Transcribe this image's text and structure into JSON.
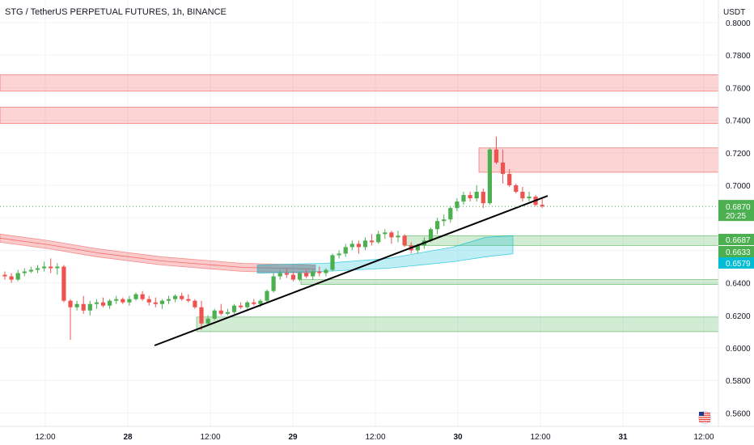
{
  "title": "STG / TetherUS PERPETUAL FUTURES, 1h, BINANCE",
  "currency": "USDT",
  "price_label": {
    "value": "0.6870",
    "countdown": "20:25",
    "color": "#4caf50"
  },
  "level_labels": [
    {
      "value": "0.6687",
      "color": "#4caf50",
      "fill": "green"
    },
    {
      "value": "0.6633",
      "color": "#4caf50",
      "fill": "green"
    },
    {
      "value": "0.6579",
      "color": "#00bcd4",
      "fill": "cyan"
    }
  ],
  "flag_icon": "us-flag-icon",
  "colors": {
    "up": "#4caf50",
    "down": "#ef5350",
    "supply": "#ef5350",
    "demand": "#4caf50",
    "trendline": "#000000",
    "grid": "#f0f3fa"
  },
  "chart_data": {
    "type": "candlestick",
    "title": "STG / TetherUS PERPETUAL FUTURES, 1h, BINANCE",
    "y_axis": {
      "unit": "USDT",
      "ylim": [
        0.555,
        0.804
      ],
      "ticks": [
        "0.8000",
        "0.7800",
        "0.7600",
        "0.7400",
        "0.7200",
        "0.7000",
        "0.6800",
        "0.6600",
        "0.6400",
        "0.6200",
        "0.6000",
        "0.5800",
        "0.5600"
      ]
    },
    "x_axis": {
      "ticks": [
        "12:00",
        "28",
        "12:00",
        "29",
        "12:00",
        "30",
        "12:00",
        "31",
        "12:00"
      ]
    },
    "candles_ohlc": [
      [
        0.645,
        0.647,
        0.642,
        0.644
      ],
      [
        0.644,
        0.646,
        0.64,
        0.642
      ],
      [
        0.642,
        0.648,
        0.641,
        0.646
      ],
      [
        0.646,
        0.649,
        0.644,
        0.647
      ],
      [
        0.647,
        0.65,
        0.646,
        0.648
      ],
      [
        0.648,
        0.651,
        0.646,
        0.649
      ],
      [
        0.649,
        0.653,
        0.647,
        0.65
      ],
      [
        0.65,
        0.655,
        0.646,
        0.649
      ],
      [
        0.649,
        0.652,
        0.645,
        0.65
      ],
      [
        0.65,
        0.651,
        0.628,
        0.629
      ],
      [
        0.629,
        0.63,
        0.605,
        0.625
      ],
      [
        0.625,
        0.629,
        0.623,
        0.627
      ],
      [
        0.627,
        0.632,
        0.621,
        0.623
      ],
      [
        0.623,
        0.629,
        0.62,
        0.627
      ],
      [
        0.627,
        0.63,
        0.624,
        0.628
      ],
      [
        0.628,
        0.631,
        0.625,
        0.626
      ],
      [
        0.626,
        0.63,
        0.624,
        0.629
      ],
      [
        0.629,
        0.632,
        0.627,
        0.63
      ],
      [
        0.63,
        0.631,
        0.627,
        0.628
      ],
      [
        0.628,
        0.632,
        0.626,
        0.63
      ],
      [
        0.63,
        0.634,
        0.629,
        0.633
      ],
      [
        0.633,
        0.635,
        0.629,
        0.63
      ],
      [
        0.63,
        0.632,
        0.626,
        0.628
      ],
      [
        0.628,
        0.631,
        0.625,
        0.627
      ],
      [
        0.627,
        0.63,
        0.624,
        0.629
      ],
      [
        0.629,
        0.632,
        0.627,
        0.63
      ],
      [
        0.63,
        0.633,
        0.628,
        0.632
      ],
      [
        0.632,
        0.634,
        0.629,
        0.63
      ],
      [
        0.63,
        0.633,
        0.628,
        0.629
      ],
      [
        0.629,
        0.63,
        0.624,
        0.625
      ],
      [
        0.625,
        0.629,
        0.611,
        0.615
      ],
      [
        0.615,
        0.62,
        0.614,
        0.618
      ],
      [
        0.618,
        0.624,
        0.617,
        0.623
      ],
      [
        0.623,
        0.627,
        0.62,
        0.621
      ],
      [
        0.621,
        0.624,
        0.62,
        0.622
      ],
      [
        0.622,
        0.627,
        0.621,
        0.626
      ],
      [
        0.626,
        0.628,
        0.624,
        0.625
      ],
      [
        0.625,
        0.629,
        0.624,
        0.628
      ],
      [
        0.628,
        0.63,
        0.626,
        0.627
      ],
      [
        0.627,
        0.63,
        0.625,
        0.629
      ],
      [
        0.629,
        0.636,
        0.628,
        0.635
      ],
      [
        0.635,
        0.646,
        0.634,
        0.644
      ],
      [
        0.644,
        0.648,
        0.642,
        0.646
      ],
      [
        0.646,
        0.649,
        0.643,
        0.645
      ],
      [
        0.645,
        0.647,
        0.641,
        0.642
      ],
      [
        0.642,
        0.647,
        0.641,
        0.646
      ],
      [
        0.646,
        0.648,
        0.643,
        0.644
      ],
      [
        0.644,
        0.648,
        0.642,
        0.647
      ],
      [
        0.647,
        0.65,
        0.644,
        0.646
      ],
      [
        0.646,
        0.649,
        0.644,
        0.648
      ],
      [
        0.648,
        0.658,
        0.647,
        0.657
      ],
      [
        0.657,
        0.66,
        0.655,
        0.658
      ],
      [
        0.658,
        0.664,
        0.656,
        0.662
      ],
      [
        0.662,
        0.666,
        0.66,
        0.664
      ],
      [
        0.664,
        0.666,
        0.658,
        0.662
      ],
      [
        0.662,
        0.668,
        0.66,
        0.666
      ],
      [
        0.666,
        0.67,
        0.663,
        0.665
      ],
      [
        0.665,
        0.672,
        0.664,
        0.67
      ],
      [
        0.67,
        0.673,
        0.667,
        0.671
      ],
      [
        0.671,
        0.672,
        0.664,
        0.668
      ],
      [
        0.668,
        0.672,
        0.665,
        0.669
      ],
      [
        0.669,
        0.67,
        0.662,
        0.663
      ],
      [
        0.663,
        0.665,
        0.658,
        0.66
      ],
      [
        0.66,
        0.664,
        0.658,
        0.663
      ],
      [
        0.663,
        0.668,
        0.661,
        0.666
      ],
      [
        0.666,
        0.674,
        0.665,
        0.673
      ],
      [
        0.673,
        0.68,
        0.67,
        0.678
      ],
      [
        0.678,
        0.682,
        0.675,
        0.679
      ],
      [
        0.679,
        0.687,
        0.677,
        0.686
      ],
      [
        0.686,
        0.692,
        0.684,
        0.69
      ],
      [
        0.69,
        0.696,
        0.688,
        0.694
      ],
      [
        0.694,
        0.696,
        0.69,
        0.692
      ],
      [
        0.692,
        0.7,
        0.69,
        0.696
      ],
      [
        0.696,
        0.698,
        0.686,
        0.689
      ],
      [
        0.689,
        0.723,
        0.688,
        0.722
      ],
      [
        0.722,
        0.73,
        0.713,
        0.714
      ],
      [
        0.714,
        0.722,
        0.701,
        0.707
      ],
      [
        0.707,
        0.71,
        0.699,
        0.7
      ],
      [
        0.7,
        0.701,
        0.695,
        0.696
      ],
      [
        0.696,
        0.699,
        0.69,
        0.692
      ],
      [
        0.692,
        0.696,
        0.69,
        0.693
      ],
      [
        0.693,
        0.694,
        0.687,
        0.688
      ],
      [
        0.688,
        0.692,
        0.686,
        0.687
      ]
    ],
    "supply_zones": [
      [
        0.758,
        0.768
      ],
      [
        0.738,
        0.748
      ],
      [
        0.708,
        0.723
      ]
    ],
    "demand_zones": [
      [
        0.663,
        0.669
      ],
      [
        0.639,
        0.642
      ],
      [
        0.61,
        0.619
      ]
    ],
    "trendline": {
      "from": [
        23,
        0.6
      ],
      "to": [
        84,
        0.694
      ]
    }
  }
}
